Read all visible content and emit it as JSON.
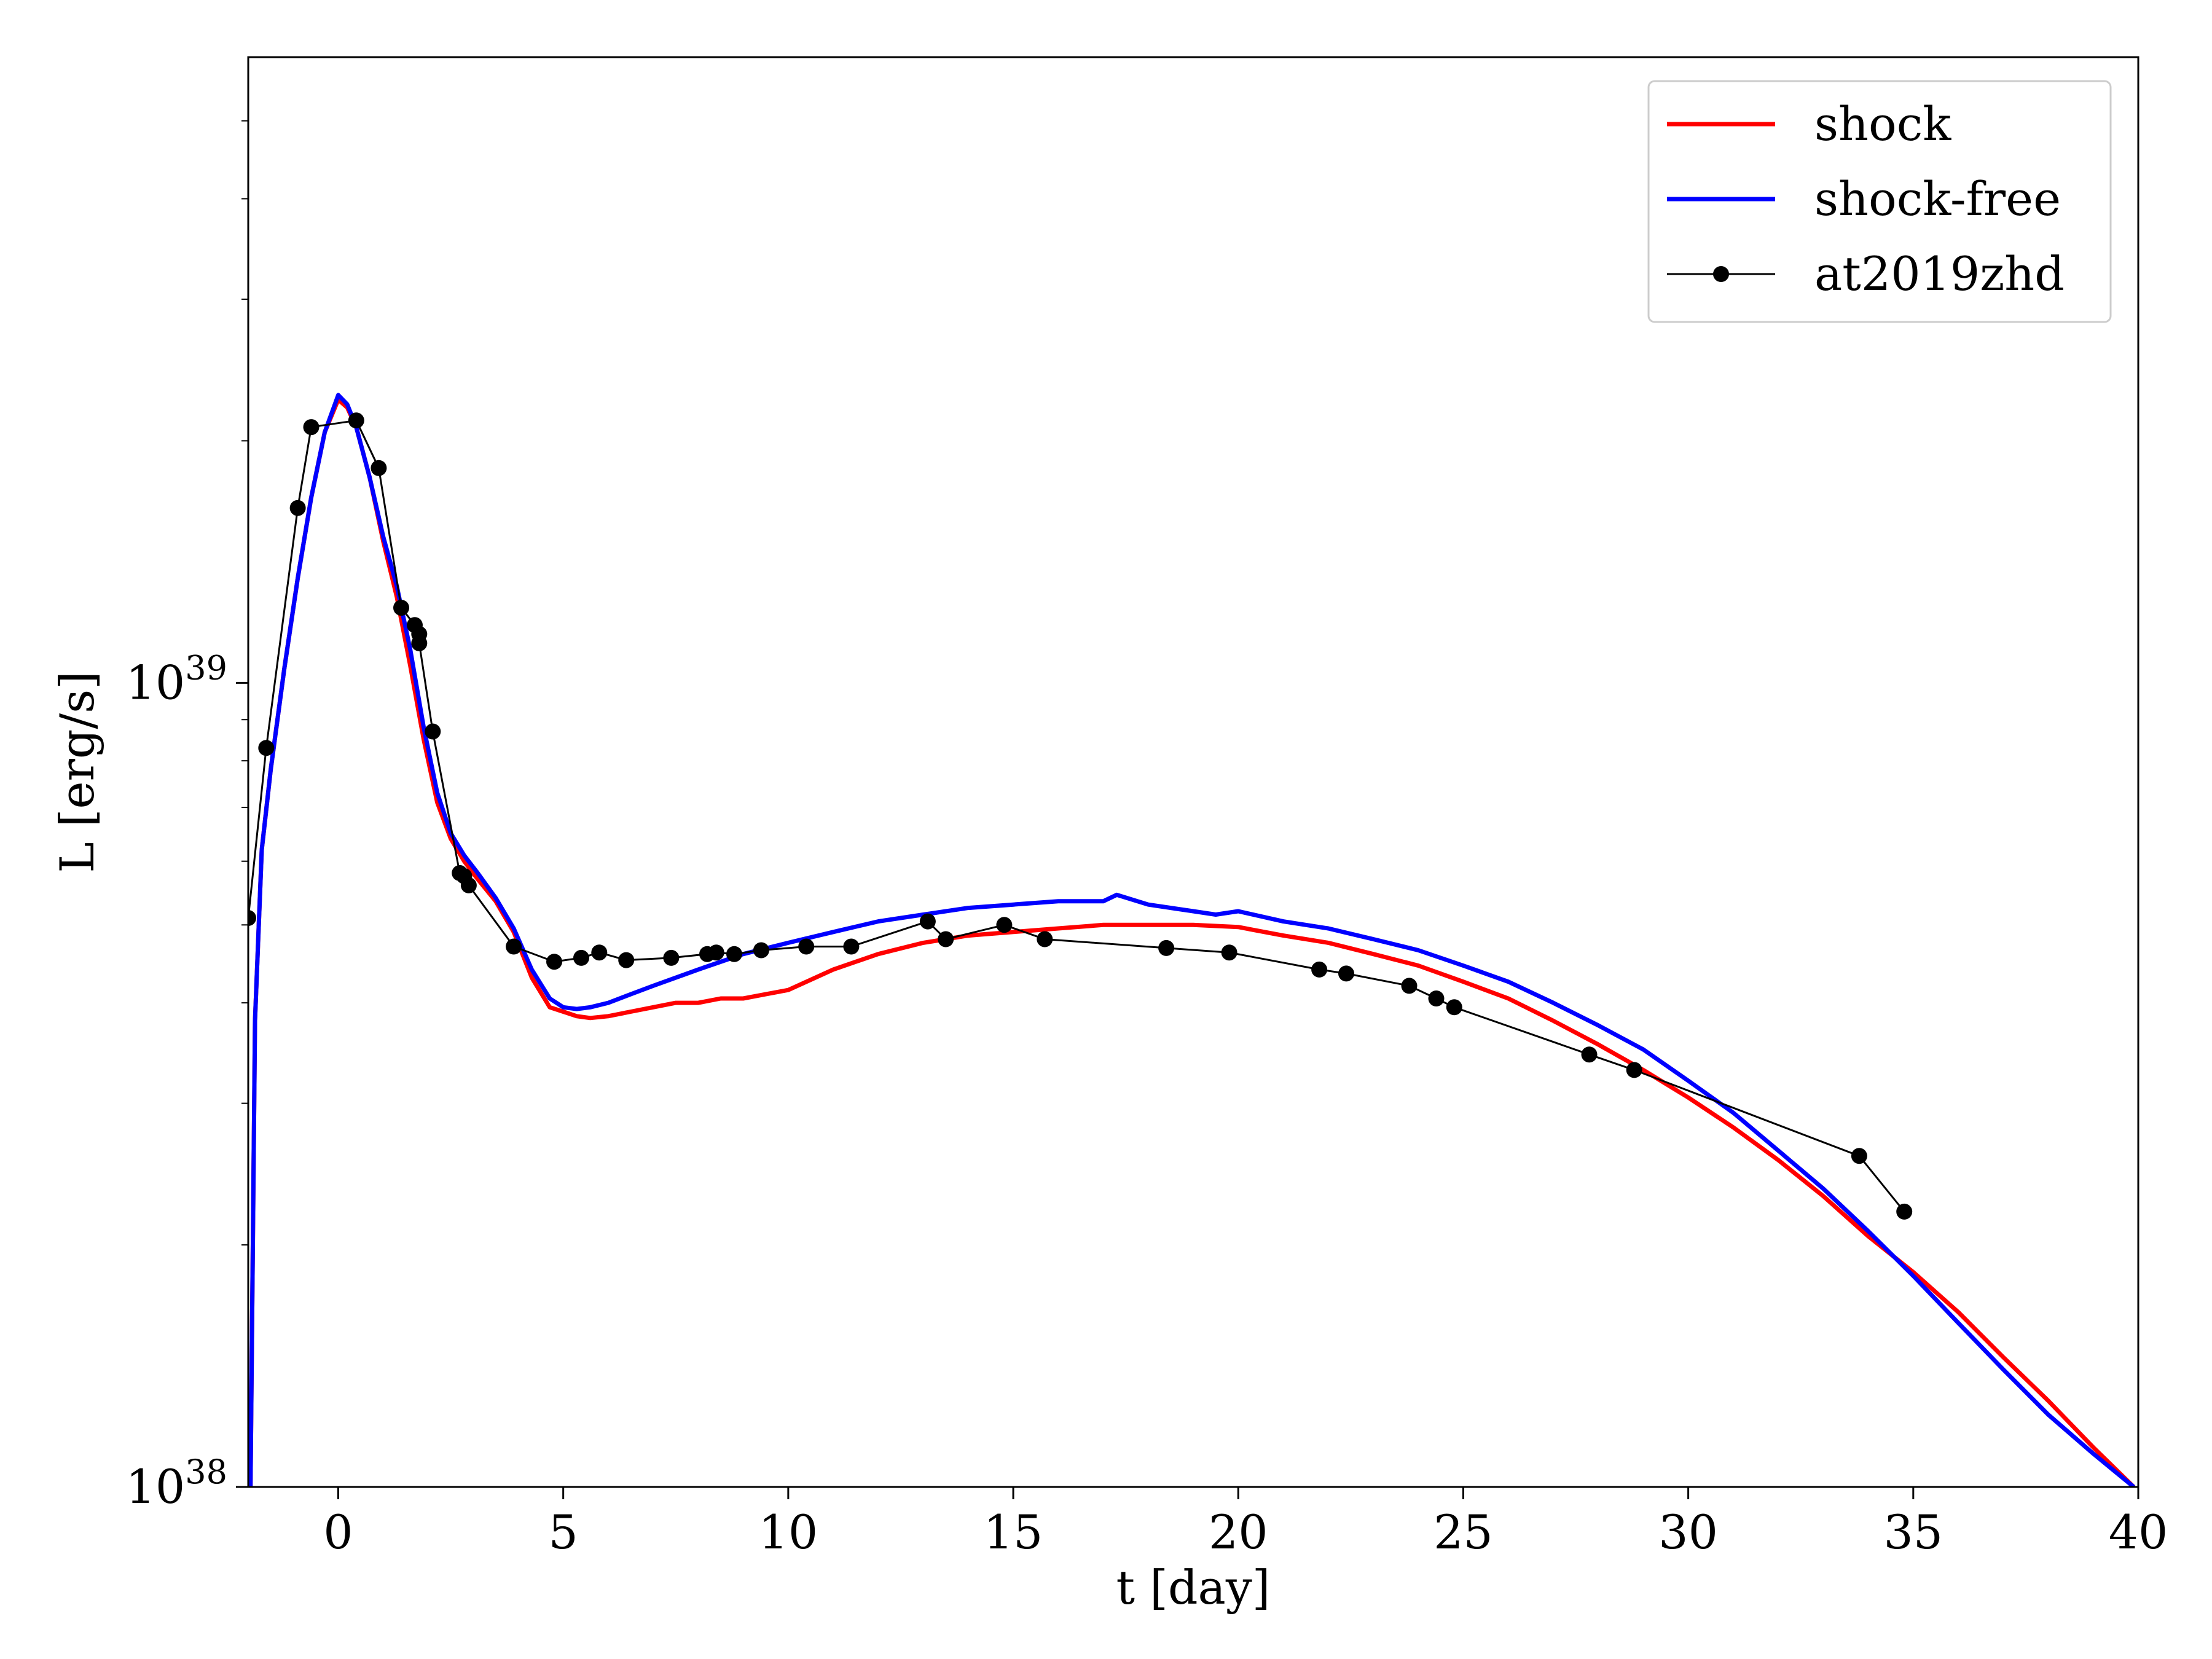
{
  "chart_data": {
    "type": "line",
    "title": "",
    "xlabel": "t [day]",
    "ylabel": "L [erg/s]",
    "xlim": [
      -2,
      40
    ],
    "ylim": [
      1e+38,
      6e+39
    ],
    "yscale": "log",
    "grid": false,
    "legend_position": "top-right",
    "x_ticks": [
      {
        "value": 0,
        "label": "0"
      },
      {
        "value": 5,
        "label": "5"
      },
      {
        "value": 10,
        "label": "10"
      },
      {
        "value": 15,
        "label": "15"
      },
      {
        "value": 20,
        "label": "20"
      },
      {
        "value": 25,
        "label": "25"
      },
      {
        "value": 30,
        "label": "30"
      },
      {
        "value": 35,
        "label": "35"
      },
      {
        "value": 40,
        "label": "40"
      }
    ],
    "y_ticks": [
      {
        "value": 1e+38,
        "base": "10",
        "exponent": "38"
      },
      {
        "value": 1e+39,
        "base": "10",
        "exponent": "39"
      }
    ],
    "series": [
      {
        "name": "shock",
        "color": "#ff0000",
        "style": "line",
        "x": [
          -1.95,
          -1.85,
          -1.7,
          -1.5,
          -1.2,
          -0.9,
          -0.6,
          -0.3,
          0,
          0.2,
          0.4,
          0.7,
          1.0,
          1.3,
          1.6,
          1.9,
          2.2,
          2.5,
          2.8,
          3.1,
          3.5,
          3.9,
          4.3,
          4.7,
          5.0,
          5.3,
          5.6,
          6.0,
          6.5,
          7.0,
          7.5,
          8.0,
          8.5,
          9.0,
          9.5,
          10.0,
          11.0,
          12.0,
          13.0,
          14.0,
          15.0,
          16.0,
          17.0,
          18.0,
          19.0,
          20.0,
          21.0,
          22.0,
          23.0,
          24.0,
          25.0,
          26.0,
          27.0,
          28.0,
          29.0,
          30.0,
          31.0,
          32.0,
          33.0,
          34.0,
          35.0,
          36.0,
          37.0,
          38.0,
          39.0,
          39.9
        ],
        "y": [
          1e+38,
          3.8e+38,
          6.2e+38,
          7.8e+38,
          1.04e+39,
          1.35e+39,
          1.7e+39,
          2.05e+39,
          2.25e+39,
          2.2e+39,
          2.08e+39,
          1.8e+39,
          1.5e+39,
          1.28e+39,
          1.05e+39,
          8.5e+38,
          7.1e+38,
          6.4e+38,
          6e+38,
          5.7e+38,
          5.35e+38,
          4.9e+38,
          4.3e+38,
          3.95e+38,
          3.9e+38,
          3.85e+38,
          3.83e+38,
          3.85e+38,
          3.9e+38,
          3.95e+38,
          4e+38,
          4e+38,
          4.05e+38,
          4.05e+38,
          4.1e+38,
          4.15e+38,
          4.4e+38,
          4.6e+38,
          4.75e+38,
          4.85e+38,
          4.9e+38,
          4.95e+38,
          5e+38,
          5e+38,
          5e+38,
          4.97e+38,
          4.85e+38,
          4.75e+38,
          4.6e+38,
          4.45e+38,
          4.25e+38,
          4.05e+38,
          3.8e+38,
          3.55e+38,
          3.3e+38,
          3.05e+38,
          2.8e+38,
          2.55e+38,
          2.3e+38,
          2.05e+38,
          1.85e+38,
          1.65e+38,
          1.45e+38,
          1.28e+38,
          1.12e+38,
          1e+38
        ]
      },
      {
        "name": "shock-free",
        "color": "#0000ff",
        "style": "line",
        "x": [
          -1.95,
          -1.85,
          -1.7,
          -1.5,
          -1.2,
          -0.9,
          -0.6,
          -0.3,
          0,
          0.2,
          0.4,
          0.7,
          1.0,
          1.3,
          1.6,
          1.9,
          2.2,
          2.5,
          2.8,
          3.1,
          3.5,
          3.9,
          4.3,
          4.7,
          5.0,
          5.3,
          5.6,
          6.0,
          6.5,
          7.0,
          8.0,
          9.0,
          10.0,
          11.0,
          12.0,
          13.0,
          14.0,
          15.0,
          16.0,
          17.0,
          17.3,
          18.0,
          19.0,
          19.5,
          20.0,
          21.0,
          22.0,
          23.0,
          24.0,
          25.0,
          26.0,
          27.0,
          28.0,
          29.0,
          30.0,
          31.0,
          32.0,
          33.0,
          34.0,
          35.0,
          36.0,
          37.0,
          38.0,
          39.0,
          39.9
        ],
        "y": [
          1e+38,
          3.8e+38,
          6.2e+38,
          7.8e+38,
          1.04e+39,
          1.35e+39,
          1.7e+39,
          2.05e+39,
          2.28e+39,
          2.22e+39,
          2.08e+39,
          1.8e+39,
          1.52e+39,
          1.32e+39,
          1.1e+39,
          8.8e+38,
          7.3e+38,
          6.5e+38,
          6.1e+38,
          5.8e+38,
          5.4e+38,
          4.95e+38,
          4.4e+38,
          4.05e+38,
          3.95e+38,
          3.93e+38,
          3.95e+38,
          4e+38,
          4.1e+38,
          4.2e+38,
          4.4e+38,
          4.6e+38,
          4.75e+38,
          4.9e+38,
          5.05e+38,
          5.15e+38,
          5.25e+38,
          5.3e+38,
          5.35e+38,
          5.35e+38,
          5.45e+38,
          5.3e+38,
          5.2e+38,
          5.15e+38,
          5.2e+38,
          5.05e+38,
          4.95e+38,
          4.8e+38,
          4.65e+38,
          4.45e+38,
          4.25e+38,
          4e+38,
          3.75e+38,
          3.5e+38,
          3.2e+38,
          2.92e+38,
          2.62e+38,
          2.35e+38,
          2.08e+38,
          1.83e+38,
          1.6e+38,
          1.4e+38,
          1.23e+38,
          1.1e+38,
          1e+38
        ]
      },
      {
        "name": "at2019zhd",
        "color": "#000000",
        "style": "line-marker",
        "x": [
          -2.0,
          -1.6,
          -0.9,
          -0.6,
          0.4,
          0.9,
          1.4,
          1.7,
          1.8,
          1.8,
          2.1,
          2.7,
          2.8,
          2.9,
          3.9,
          4.8,
          5.4,
          5.8,
          6.4,
          7.4,
          8.2,
          8.4,
          8.8,
          9.4,
          10.4,
          11.4,
          13.1,
          13.5,
          14.8,
          15.7,
          18.4,
          19.8,
          21.8,
          22.4,
          23.8,
          24.4,
          24.8,
          27.8,
          28.8,
          33.8,
          34.8
        ],
        "y": [
          5.1e+38,
          8.3e+38,
          1.65e+39,
          2.08e+39,
          2.12e+39,
          1.85e+39,
          1.24e+39,
          1.18e+39,
          1.15e+39,
          1.12e+39,
          8.7e+38,
          5.8e+38,
          5.75e+38,
          5.6e+38,
          4.7e+38,
          4.5e+38,
          4.55e+38,
          4.62e+38,
          4.52e+38,
          4.55e+38,
          4.6e+38,
          4.62e+38,
          4.6e+38,
          4.65e+38,
          4.7e+38,
          4.7e+38,
          5.05e+38,
          4.8e+38,
          5e+38,
          4.8e+38,
          4.68e+38,
          4.62e+38,
          4.4e+38,
          4.35e+38,
          4.2e+38,
          4.05e+38,
          3.95e+38,
          3.45e+38,
          3.3e+38,
          2.58e+38,
          2.2e+38
        ]
      }
    ]
  }
}
